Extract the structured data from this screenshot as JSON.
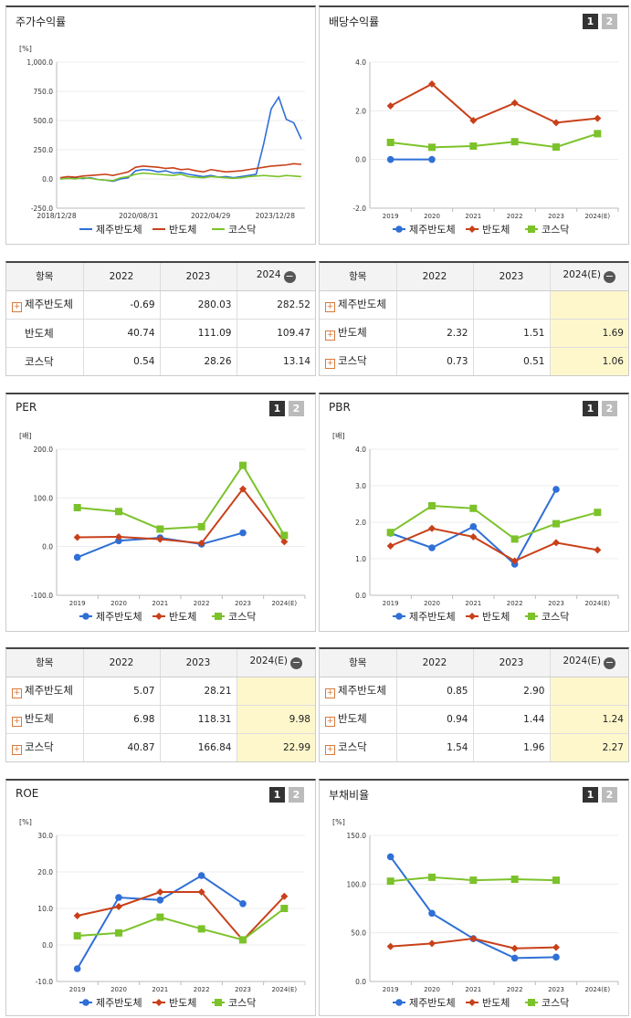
{
  "colors": {
    "series1": "#2f6fd6",
    "series2": "#c8401a",
    "series3": "#7cc22a"
  },
  "legend": [
    "제주반도체",
    "반도체",
    "코스닥"
  ],
  "panels": {
    "stock": {
      "title": "주가수익률"
    },
    "dividend": {
      "title": "배당수익률",
      "btn1": "1",
      "btn2": "2"
    },
    "per": {
      "title": "PER",
      "btn1": "1",
      "btn2": "2"
    },
    "pbr": {
      "title": "PBR",
      "btn1": "1",
      "btn2": "2"
    },
    "roe": {
      "title": "ROE",
      "btn1": "1",
      "btn2": "2"
    },
    "debt": {
      "title": "부채비율",
      "btn1": "1",
      "btn2": "2"
    }
  },
  "tables": {
    "stock": {
      "headers": [
        "항목",
        "2022",
        "2023",
        "2024"
      ],
      "rows": [
        {
          "name": "제주반도체",
          "plus": true,
          "vals": [
            "-0.69",
            "280.03",
            "282.52"
          ]
        },
        {
          "name": "반도체",
          "plus": false,
          "vals": [
            "40.74",
            "111.09",
            "109.47"
          ]
        },
        {
          "name": "코스닥",
          "plus": false,
          "vals": [
            "0.54",
            "28.26",
            "13.14"
          ]
        }
      ]
    },
    "dividend": {
      "headers": [
        "항목",
        "2022",
        "2023",
        "2024(E)"
      ],
      "rows": [
        {
          "name": "제주반도체",
          "plus": true,
          "vals": [
            "",
            "",
            ""
          ]
        },
        {
          "name": "반도체",
          "plus": true,
          "vals": [
            "2.32",
            "1.51",
            "1.69"
          ]
        },
        {
          "name": "코스닥",
          "plus": true,
          "vals": [
            "0.73",
            "0.51",
            "1.06"
          ]
        }
      ]
    },
    "per": {
      "headers": [
        "항목",
        "2022",
        "2023",
        "2024(E)"
      ],
      "rows": [
        {
          "name": "제주반도체",
          "plus": true,
          "vals": [
            "5.07",
            "28.21",
            ""
          ]
        },
        {
          "name": "반도체",
          "plus": true,
          "vals": [
            "6.98",
            "118.31",
            "9.98"
          ]
        },
        {
          "name": "코스닥",
          "plus": true,
          "vals": [
            "40.87",
            "166.84",
            "22.99"
          ]
        }
      ]
    },
    "pbr": {
      "headers": [
        "항목",
        "2022",
        "2023",
        "2024(E)"
      ],
      "rows": [
        {
          "name": "제주반도체",
          "plus": true,
          "vals": [
            "0.85",
            "2.90",
            ""
          ]
        },
        {
          "name": "반도체",
          "plus": true,
          "vals": [
            "0.94",
            "1.44",
            "1.24"
          ]
        },
        {
          "name": "코스닥",
          "plus": true,
          "vals": [
            "1.54",
            "1.96",
            "2.27"
          ]
        }
      ]
    }
  },
  "chart_data": [
    {
      "id": "stock",
      "type": "line",
      "unit": "[%]",
      "ylim": [
        -250,
        1000
      ],
      "yticks": [
        "-250.0",
        "0.0",
        "250.0",
        "500.0",
        "750.0",
        "1,000.0"
      ],
      "xticks": [
        "2018/12/28",
        "2020/08/31",
        "2022/04/29",
        "2023/12/28"
      ],
      "series": [
        {
          "name": "제주반도체",
          "values": [
            0,
            5,
            8,
            3,
            10,
            -5,
            -10,
            -20,
            0,
            10,
            70,
            80,
            75,
            60,
            70,
            50,
            55,
            40,
            30,
            20,
            30,
            15,
            20,
            10,
            20,
            30,
            40,
            300,
            600,
            700,
            510,
            480,
            340
          ]
        },
        {
          "name": "반도체",
          "values": [
            10,
            20,
            15,
            25,
            30,
            35,
            40,
            30,
            45,
            60,
            100,
            110,
            105,
            100,
            90,
            95,
            80,
            85,
            70,
            60,
            80,
            70,
            60,
            65,
            70,
            80,
            90,
            100,
            110,
            115,
            120,
            130,
            125
          ]
        },
        {
          "name": "코스닥",
          "values": [
            0,
            5,
            0,
            10,
            5,
            -5,
            -10,
            -15,
            10,
            20,
            40,
            50,
            45,
            40,
            35,
            30,
            40,
            20,
            15,
            10,
            20,
            15,
            10,
            5,
            10,
            20,
            25,
            30,
            25,
            20,
            30,
            25,
            20
          ]
        }
      ]
    },
    {
      "id": "dividend",
      "type": "line",
      "unit": "",
      "ylim": [
        -2,
        4
      ],
      "yticks": [
        "-2.0",
        "0.0",
        "2.0",
        "4.0"
      ],
      "categories": [
        "2019",
        "2020",
        "2021",
        "2022",
        "2023",
        "2024(E)"
      ],
      "series": [
        {
          "name": "제주반도체",
          "values": [
            0,
            0,
            null,
            null,
            null,
            null
          ]
        },
        {
          "name": "반도체",
          "values": [
            2.2,
            3.1,
            1.6,
            2.32,
            1.51,
            1.69
          ]
        },
        {
          "name": "코스닥",
          "values": [
            0.7,
            0.5,
            0.55,
            0.73,
            0.51,
            1.06
          ]
        }
      ]
    },
    {
      "id": "per",
      "type": "line",
      "unit": "[배]",
      "ylim": [
        -100,
        200
      ],
      "yticks": [
        "-100.0",
        "0.0",
        "100.0",
        "200.0"
      ],
      "categories": [
        "2019",
        "2020",
        "2021",
        "2022",
        "2023",
        "2024(E)"
      ],
      "series": [
        {
          "name": "제주반도체",
          "values": [
            -22,
            12,
            18,
            5.07,
            28.21,
            null
          ]
        },
        {
          "name": "반도체",
          "values": [
            19,
            20,
            15,
            6.98,
            118.31,
            9.98
          ]
        },
        {
          "name": "코스닥",
          "values": [
            80,
            72,
            36,
            40.87,
            166.84,
            22.99
          ]
        }
      ]
    },
    {
      "id": "pbr",
      "type": "line",
      "unit": "[배]",
      "ylim": [
        0,
        4
      ],
      "yticks": [
        "0.0",
        "1.0",
        "2.0",
        "3.0",
        "4.0"
      ],
      "categories": [
        "2019",
        "2020",
        "2021",
        "2022",
        "2023",
        "2024(E)"
      ],
      "series": [
        {
          "name": "제주반도체",
          "values": [
            1.7,
            1.3,
            1.88,
            0.85,
            2.9,
            null
          ]
        },
        {
          "name": "반도체",
          "values": [
            1.35,
            1.83,
            1.6,
            0.94,
            1.44,
            1.24
          ]
        },
        {
          "name": "코스닥",
          "values": [
            1.72,
            2.45,
            2.38,
            1.54,
            1.96,
            2.27
          ]
        }
      ]
    },
    {
      "id": "roe",
      "type": "line",
      "unit": "[%]",
      "ylim": [
        -10,
        30
      ],
      "yticks": [
        "-10.0",
        "0.0",
        "10.0",
        "20.0",
        "30.0"
      ],
      "categories": [
        "2019",
        "2020",
        "2021",
        "2022",
        "2023",
        "2024(E)"
      ],
      "series": [
        {
          "name": "제주반도체",
          "values": [
            -6.5,
            13,
            12.3,
            19,
            11.3,
            null
          ]
        },
        {
          "name": "반도체",
          "values": [
            8,
            10.5,
            14.5,
            14.5,
            1.3,
            13.3
          ]
        },
        {
          "name": "코스닥",
          "values": [
            2.5,
            3.3,
            7.6,
            4.4,
            1.4,
            10
          ]
        }
      ]
    },
    {
      "id": "debt",
      "type": "line",
      "unit": "[%]",
      "ylim": [
        0,
        150
      ],
      "yticks": [
        "0.0",
        "50.0",
        "100.0",
        "150.0"
      ],
      "categories": [
        "2019",
        "2020",
        "2021",
        "2022",
        "2023",
        "2024(E)"
      ],
      "series": [
        {
          "name": "제주반도체",
          "values": [
            128,
            70,
            44,
            24,
            25,
            null
          ]
        },
        {
          "name": "반도체",
          "values": [
            36,
            39,
            44,
            34,
            35,
            null
          ]
        },
        {
          "name": "코스닥",
          "values": [
            103,
            107,
            104,
            105,
            104,
            null
          ]
        }
      ]
    }
  ]
}
